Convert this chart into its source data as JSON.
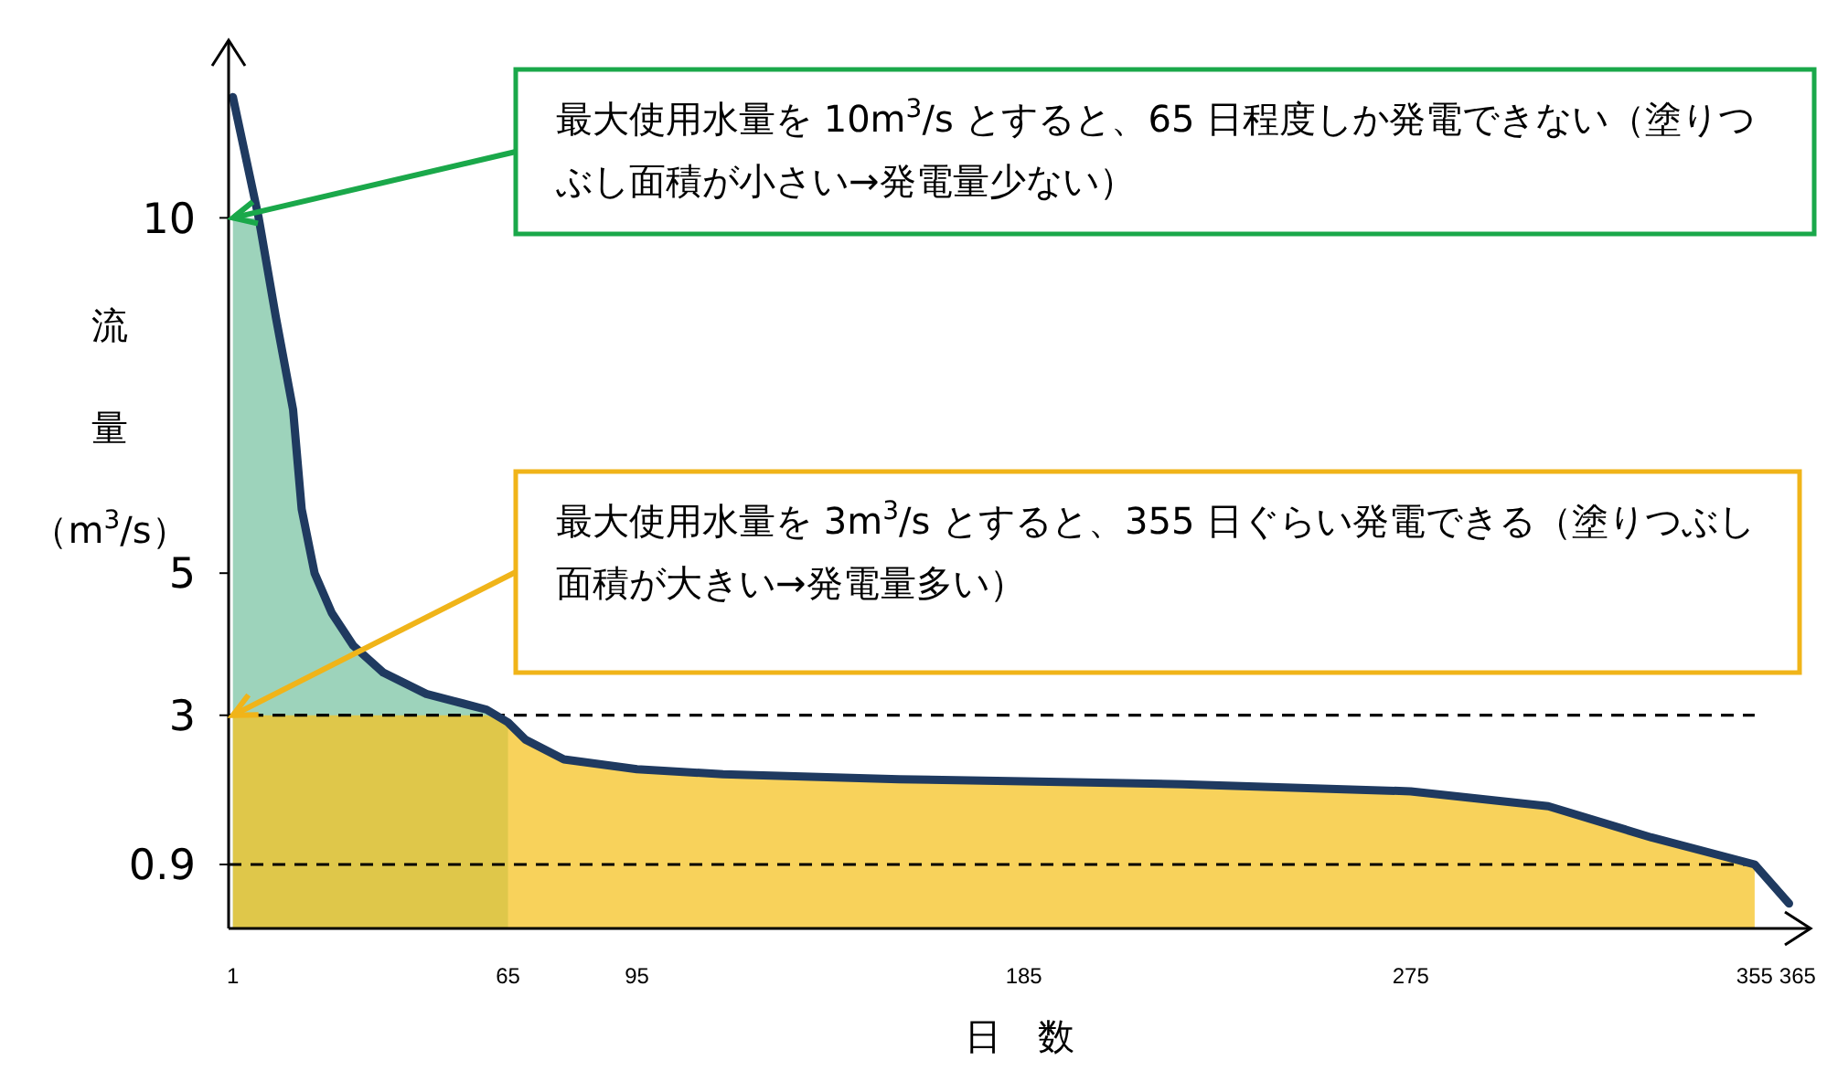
{
  "chart_data": {
    "type": "line",
    "xlabel": "日　数",
    "ylabel": "流量（m$^{3}$/s）",
    "xlim": [
      0,
      368
    ],
    "xticks": [
      1,
      65,
      95,
      185,
      275,
      355,
      365
    ],
    "ylim": [
      0,
      12.5
    ],
    "yticks": [
      0.9,
      3,
      5,
      10
    ],
    "grid": false,
    "marker": "none",
    "line_style": "solid",
    "series": [
      {
        "type": "area",
        "color": "#7cc4a4",
        "x": [
          1,
          7,
          11,
          15,
          17,
          20,
          24,
          29,
          36,
          46,
          60,
          65
        ],
        "values": [
          10,
          10,
          8.6,
          7.3,
          5.9,
          5,
          4.44,
          3.98,
          3.6,
          3.3,
          3.08,
          2.9
        ]
      },
      {
        "type": "area",
        "color": "#f6c324",
        "x": [
          1,
          60,
          65,
          69,
          78,
          95,
          115,
          156,
          185,
          222,
          275,
          307,
          331,
          355
        ],
        "values": [
          3,
          3,
          2.9,
          2.66,
          2.38,
          2.24,
          2.17,
          2.1,
          2.07,
          2.03,
          1.93,
          1.72,
          1.28,
          0.9
        ]
      },
      {
        "color": "#1f3a60",
        "x": [
          1,
          7,
          11,
          15,
          17,
          20,
          24,
          29,
          36,
          46,
          60,
          65,
          69,
          78,
          95,
          115,
          156,
          185,
          222,
          275,
          307,
          331,
          355,
          363
        ],
        "values": [
          11.7,
          10,
          8.6,
          7.3,
          5.9,
          5,
          4.44,
          3.98,
          3.6,
          3.3,
          3.08,
          2.9,
          2.66,
          2.38,
          2.24,
          2.17,
          2.1,
          2.07,
          2.03,
          1.93,
          1.72,
          1.28,
          0.9,
          0.35
        ]
      }
    ],
    "ref_lines": [
      {
        "axis": "y",
        "value": 3,
        "color": "#000000",
        "line_style": "dashed"
      },
      {
        "axis": "y",
        "value": 0.9,
        "color": "#000000",
        "line_style": "dashed"
      }
    ],
    "annotations": [
      {
        "text": "最大使用水量を 10m$^{3}$/s とすると、65 日程度しか発電できない（塗りつぶし面積が小さい→発電量少ない）",
        "x": 1,
        "y": 10
      },
      {
        "text": "最大使用水量を 3m$^{3}$/s とすると、355 日ぐらい発電できる（塗りつぶし面積が大きい→発電量多い）",
        "x": 1,
        "y": 3
      }
    ]
  }
}
